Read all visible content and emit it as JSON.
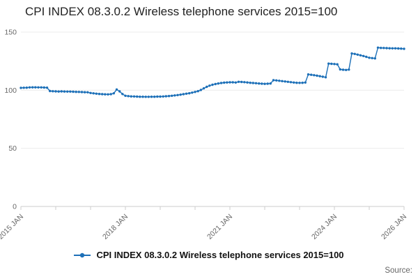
{
  "page": {
    "title": "CPI INDEX 08.3.0.2 Wireless telephone services 2015=100",
    "source_label": "Source:"
  },
  "legend": {
    "label": "CPI INDEX 08.3.0.2 Wireless telephone services 2015=100",
    "marker_color": "#1d70b8"
  },
  "chart_data": {
    "type": "line",
    "title": "CPI INDEX 08.3.0.2 Wireless telephone services 2015=100",
    "frequency": "monthly",
    "x_start": "2015 JAN",
    "x_end": "2026 JAN",
    "ylim": [
      0,
      150
    ],
    "yticks": [
      0,
      50,
      100,
      150
    ],
    "grid": true,
    "legend_position": "bottom",
    "x_tick_interval_months": 12,
    "xtick_labels": [
      {
        "label": "2015 JAN",
        "month_index": 0
      },
      {
        "label": "2018 JAN",
        "month_index": 36
      },
      {
        "label": "2021 JAN",
        "month_index": 72
      },
      {
        "label": "2024 JAN",
        "month_index": 108
      },
      {
        "label": "2026 JAN",
        "month_index": 132
      }
    ],
    "series": [
      {
        "name": "CPI INDEX 08.3.0.2 Wireless telephone services 2015=100",
        "color": "#1d70b8",
        "marker": "circle",
        "values": [
          102.0,
          102.1,
          102.2,
          102.4,
          102.5,
          102.5,
          102.4,
          102.4,
          102.3,
          102.2,
          99.3,
          99.1,
          99.0,
          98.9,
          99.0,
          98.9,
          98.8,
          98.8,
          98.7,
          98.6,
          98.5,
          98.4,
          98.3,
          98.2,
          97.6,
          97.3,
          97.0,
          96.8,
          96.6,
          96.5,
          96.4,
          96.6,
          97.3,
          100.6,
          99.0,
          96.7,
          95.2,
          94.9,
          94.7,
          94.6,
          94.5,
          94.4,
          94.4,
          94.3,
          94.3,
          94.4,
          94.4,
          94.5,
          94.5,
          94.6,
          94.8,
          95.0,
          95.2,
          95.5,
          95.8,
          96.2,
          96.6,
          97.0,
          97.4,
          97.9,
          98.5,
          99.2,
          100.2,
          101.6,
          102.9,
          103.9,
          104.7,
          105.3,
          105.8,
          106.2,
          106.5,
          106.7,
          106.8,
          106.8,
          106.6,
          107.2,
          107.1,
          106.9,
          106.7,
          106.4,
          106.2,
          106.0,
          105.8,
          105.6,
          105.5,
          105.6,
          105.8,
          108.6,
          108.4,
          108.1,
          107.8,
          107.5,
          107.2,
          106.9,
          106.6,
          106.4,
          106.3,
          106.4,
          106.6,
          113.6,
          113.3,
          112.9,
          112.5,
          112.1,
          111.6,
          111.1,
          122.9,
          122.7,
          122.5,
          122.3,
          117.9,
          117.6,
          117.4,
          117.7,
          131.6,
          131.2,
          130.6,
          130.0,
          129.4,
          128.7,
          127.9,
          127.6,
          127.4,
          136.6,
          136.4,
          136.3,
          136.2,
          136.1,
          136.0,
          136.0,
          135.9,
          135.8,
          135.6
        ]
      }
    ]
  }
}
